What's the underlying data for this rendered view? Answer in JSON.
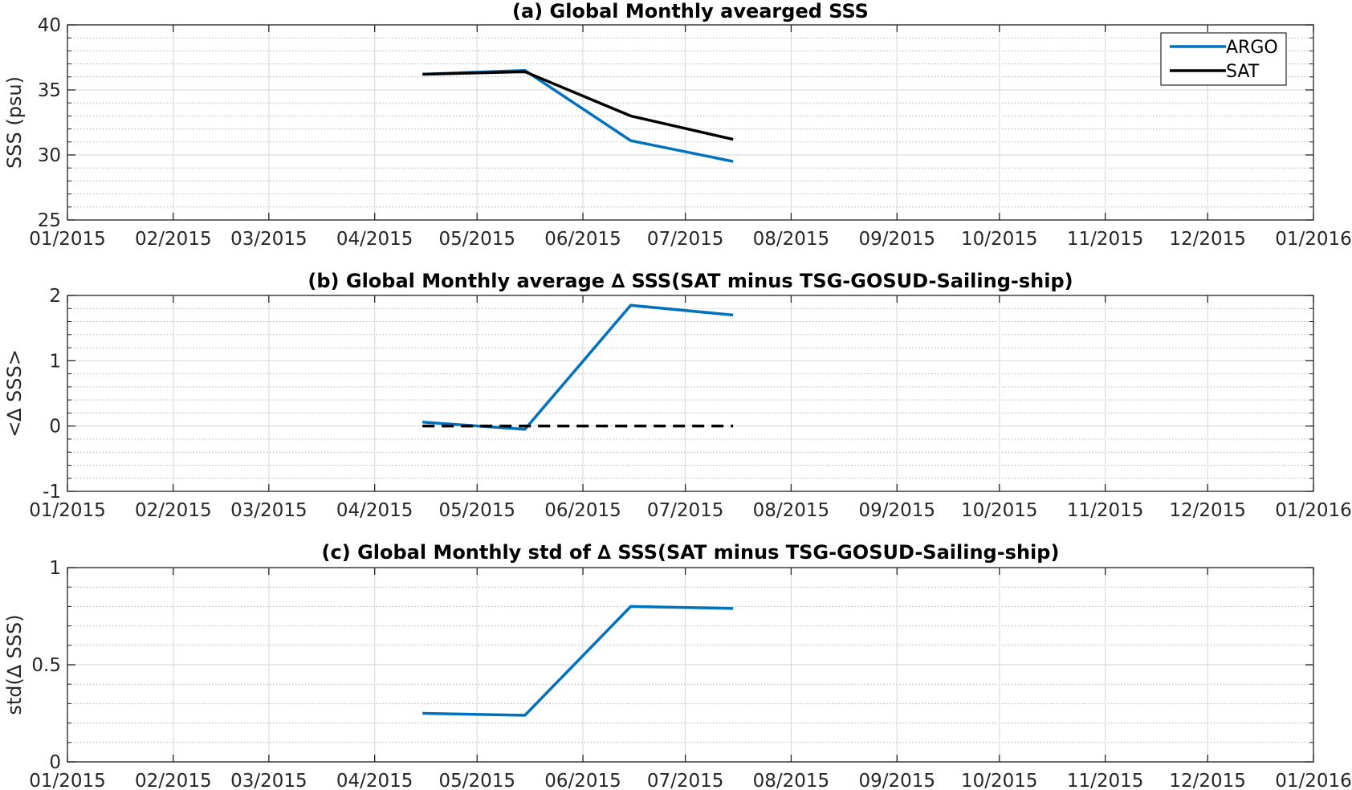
{
  "chart_data": [
    {
      "type": "line",
      "title": "(a) Global Monthly avearged SSS",
      "xlabel": "",
      "ylabel": "SSS (psu)",
      "x_tick_labels": [
        "01/2015",
        "02/2015",
        "03/2015",
        "04/2015",
        "05/2015",
        "06/2015",
        "07/2015",
        "08/2015",
        "09/2015",
        "10/2015",
        "11/2015",
        "12/2015",
        "01/2016"
      ],
      "xlim": [
        "2015-01-01",
        "2016-01-01"
      ],
      "ylim": [
        25,
        40
      ],
      "y_ticks": [
        25,
        30,
        35,
        40
      ],
      "y_tick_labels": [
        "25",
        "30",
        "35",
        "40"
      ],
      "grid": true,
      "legend": {
        "position": "top-right",
        "entries": [
          "ARGO",
          "SAT"
        ]
      },
      "series": [
        {
          "name": "ARGO",
          "color": "#0072BD",
          "dash": "solid",
          "x": [
            "2015-04-15",
            "2015-05-15",
            "2015-06-15",
            "2015-07-15"
          ],
          "values": [
            36.2,
            36.5,
            31.1,
            29.5
          ]
        },
        {
          "name": "SAT",
          "color": "#000000",
          "dash": "solid",
          "x": [
            "2015-04-15",
            "2015-05-15",
            "2015-06-15",
            "2015-07-15"
          ],
          "values": [
            36.2,
            36.4,
            33.0,
            31.2
          ]
        }
      ]
    },
    {
      "type": "line",
      "title": "(b) Global Monthly average ∆ SSS(SAT minus TSG-GOSUD-Sailing-ship)",
      "xlabel": "",
      "ylabel": "<∆ SSS>",
      "x_tick_labels": [
        "01/2015",
        "02/2015",
        "03/2015",
        "04/2015",
        "05/2015",
        "06/2015",
        "07/2015",
        "08/2015",
        "09/2015",
        "10/2015",
        "11/2015",
        "12/2015",
        "01/2016"
      ],
      "xlim": [
        "2015-01-01",
        "2016-01-01"
      ],
      "ylim": [
        -1,
        2
      ],
      "y_ticks": [
        -1,
        0,
        1,
        2
      ],
      "y_tick_labels": [
        "-1",
        "0",
        "1",
        "2"
      ],
      "grid": true,
      "series": [
        {
          "color": "#0072BD",
          "dash": "solid",
          "x": [
            "2015-04-15",
            "2015-05-15",
            "2015-06-15",
            "2015-07-15"
          ],
          "values": [
            0.06,
            -0.05,
            1.85,
            1.7
          ]
        },
        {
          "color": "#000000",
          "dash": "dashed",
          "x": [
            "2015-04-15",
            "2015-07-15"
          ],
          "values": [
            0,
            0
          ]
        }
      ]
    },
    {
      "type": "line",
      "title": "(c) Global Monthly std of ∆ SSS(SAT minus TSG-GOSUD-Sailing-ship)",
      "xlabel": "",
      "ylabel": "std(∆ SSS)",
      "x_tick_labels": [
        "01/2015",
        "02/2015",
        "03/2015",
        "04/2015",
        "05/2015",
        "06/2015",
        "07/2015",
        "08/2015",
        "09/2015",
        "10/2015",
        "11/2015",
        "12/2015",
        "01/2016"
      ],
      "xlim": [
        "2015-01-01",
        "2016-01-01"
      ],
      "ylim": [
        0,
        1
      ],
      "y_ticks": [
        0,
        0.5,
        1
      ],
      "y_tick_labels": [
        "0",
        "0.5",
        "1"
      ],
      "grid": true,
      "series": [
        {
          "color": "#0072BD",
          "dash": "solid",
          "x": [
            "2015-04-15",
            "2015-05-15",
            "2015-06-15",
            "2015-07-15"
          ],
          "values": [
            0.25,
            0.24,
            0.8,
            0.79
          ]
        }
      ]
    }
  ]
}
